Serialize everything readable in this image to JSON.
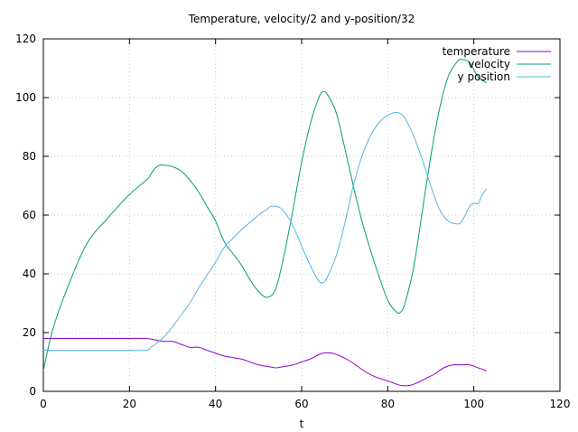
{
  "chart_data": {
    "type": "line",
    "title": "Temperature, velocity/2 and y-position/32",
    "xlabel": "t",
    "ylabel": "",
    "xlim": [
      0,
      120
    ],
    "ylim": [
      0,
      120
    ],
    "xticks": [
      0,
      20,
      40,
      60,
      80,
      100,
      120
    ],
    "yticks": [
      0,
      20,
      40,
      60,
      80,
      100,
      120
    ],
    "grid": true,
    "legend_position": "top-right",
    "series": [
      {
        "name": "temperature",
        "color": "#9400d3",
        "x": [
          0,
          2,
          5,
          10,
          15,
          20,
          24,
          26,
          28,
          30,
          32,
          34,
          36,
          38,
          40,
          42,
          44,
          46,
          48,
          50,
          52,
          54,
          56,
          58,
          60,
          62,
          64,
          65,
          67,
          69,
          71,
          73,
          75,
          77,
          79,
          81,
          83,
          85,
          87,
          89,
          91,
          93,
          95,
          97,
          99,
          101,
          103
        ],
        "values": [
          18,
          18,
          18,
          18,
          18,
          18,
          18,
          17.5,
          17,
          17,
          16,
          15,
          15,
          14,
          13,
          12,
          11.5,
          11,
          10,
          9,
          8.5,
          8,
          8.5,
          9,
          10,
          11,
          12.5,
          13,
          13,
          12,
          10.5,
          8.5,
          6.5,
          5,
          4,
          3,
          2,
          2,
          3,
          4.5,
          6,
          8,
          9,
          9,
          9,
          8,
          7
        ]
      },
      {
        "name": "velocity",
        "color": "#009e73",
        "x": [
          0,
          2,
          5,
          10,
          15,
          20,
          24,
          25,
          26,
          27,
          28,
          30,
          32,
          34,
          36,
          38,
          40,
          42,
          44,
          46,
          48,
          50,
          52,
          54,
          56,
          58,
          60,
          62,
          64,
          65,
          66,
          68,
          70,
          72,
          74,
          76,
          78,
          80,
          82,
          83,
          84,
          86,
          88,
          90,
          92,
          94,
          96,
          97,
          99,
          101,
          103
        ],
        "values": [
          7,
          20,
          33,
          50,
          59,
          67,
          72,
          74,
          76,
          77,
          77,
          76.5,
          75,
          72,
          68,
          63,
          58,
          51,
          47,
          43,
          38,
          34,
          32,
          35,
          47,
          62,
          78,
          91,
          100,
          102,
          101,
          95,
          83,
          70,
          58,
          48,
          39,
          31,
          27,
          27,
          30,
          42,
          61,
          80,
          96,
          107,
          112,
          113,
          112,
          107,
          105
        ]
      },
      {
        "name": "y position",
        "color": "#56b4e9",
        "x": [
          0,
          5,
          10,
          15,
          20,
          24,
          25,
          26,
          28,
          30,
          32,
          34,
          36,
          38,
          40,
          42,
          44,
          46,
          48,
          50,
          52,
          53,
          55,
          57,
          59,
          61,
          63,
          64,
          65,
          66,
          68,
          70,
          72,
          74,
          76,
          78,
          80,
          82,
          83,
          84,
          86,
          88,
          90,
          92,
          94,
          96,
          97,
          98,
          99,
          100,
          101,
          102,
          103
        ],
        "values": [
          14,
          14,
          14,
          14,
          14,
          14,
          15,
          16,
          18.5,
          22,
          26,
          30,
          35,
          39.5,
          44,
          49,
          52,
          55,
          57.5,
          60,
          62,
          63,
          62.5,
          59,
          53,
          46,
          40,
          37.5,
          37,
          39,
          46,
          57,
          70,
          80,
          87,
          91.5,
          94,
          95,
          94.5,
          93,
          87,
          79,
          70,
          62,
          58,
          57,
          57.5,
          60,
          63,
          64,
          64,
          67,
          69
        ]
      }
    ]
  }
}
